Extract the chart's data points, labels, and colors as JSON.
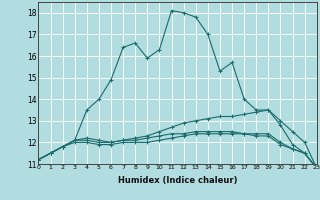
{
  "title": "",
  "xlabel": "Humidex (Indice chaleur)",
  "xlim": [
    0,
    23
  ],
  "ylim": [
    11,
    18.5
  ],
  "yticks": [
    11,
    12,
    13,
    14,
    15,
    16,
    17,
    18
  ],
  "xticks": [
    0,
    1,
    2,
    3,
    4,
    5,
    6,
    7,
    8,
    9,
    10,
    11,
    12,
    13,
    14,
    15,
    16,
    17,
    18,
    19,
    20,
    21,
    22,
    23
  ],
  "bg_color": "#b2dde0",
  "grid_color": "#ffffff",
  "line_color": "#1a6b6b",
  "lines": [
    {
      "x": [
        0,
        1,
        2,
        3,
        4,
        5,
        6,
        7,
        8,
        9,
        10,
        11,
        12,
        13,
        14,
        15,
        16,
        17,
        18,
        19,
        20,
        21,
        22,
        23
      ],
      "y": [
        11.2,
        11.5,
        11.8,
        12.1,
        13.5,
        14.0,
        14.9,
        16.4,
        16.6,
        15.9,
        16.3,
        18.1,
        18.0,
        17.8,
        17.0,
        15.3,
        15.7,
        14.0,
        13.5,
        13.5,
        12.8,
        11.9,
        11.5,
        10.8
      ]
    },
    {
      "x": [
        0,
        1,
        2,
        3,
        4,
        5,
        6,
        7,
        8,
        9,
        10,
        11,
        12,
        13,
        14,
        15,
        16,
        17,
        18,
        19,
        20,
        21,
        22,
        23
      ],
      "y": [
        11.2,
        11.5,
        11.8,
        12.1,
        12.1,
        12.0,
        12.0,
        12.1,
        12.2,
        12.3,
        12.5,
        12.7,
        12.9,
        13.0,
        13.1,
        13.2,
        13.2,
        13.3,
        13.4,
        13.5,
        13.0,
        12.5,
        12.0,
        10.8
      ]
    },
    {
      "x": [
        0,
        1,
        2,
        3,
        4,
        5,
        6,
        7,
        8,
        9,
        10,
        11,
        12,
        13,
        14,
        15,
        16,
        17,
        18,
        19,
        20,
        21,
        22,
        23
      ],
      "y": [
        11.2,
        11.5,
        11.8,
        12.0,
        12.0,
        11.9,
        11.9,
        12.0,
        12.0,
        12.0,
        12.1,
        12.2,
        12.3,
        12.4,
        12.4,
        12.4,
        12.4,
        12.4,
        12.4,
        12.4,
        12.0,
        11.7,
        11.5,
        10.8
      ]
    },
    {
      "x": [
        0,
        1,
        2,
        3,
        4,
        5,
        6,
        7,
        8,
        9,
        10,
        11,
        12,
        13,
        14,
        15,
        16,
        17,
        18,
        19,
        20,
        21,
        22,
        23
      ],
      "y": [
        11.2,
        11.5,
        11.8,
        12.1,
        12.2,
        12.1,
        12.0,
        12.1,
        12.1,
        12.2,
        12.3,
        12.4,
        12.4,
        12.5,
        12.5,
        12.5,
        12.5,
        12.4,
        12.3,
        12.3,
        11.9,
        11.7,
        11.5,
        10.8
      ]
    }
  ]
}
